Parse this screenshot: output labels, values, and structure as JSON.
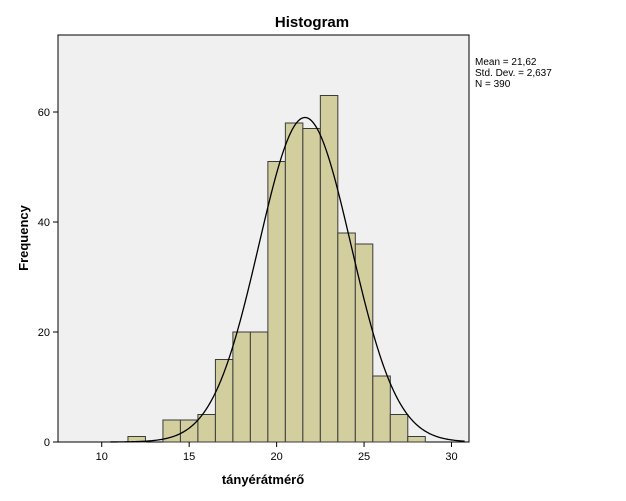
{
  "chart_data": {
    "type": "bar",
    "title": "Histogram",
    "xlabel": "tányérátmérő",
    "ylabel": "Frequency",
    "xlim": [
      7.5,
      31
    ],
    "ylim": [
      0,
      74
    ],
    "x_ticks": [
      10,
      15,
      20,
      25,
      30
    ],
    "y_ticks": [
      0,
      20,
      40,
      60
    ],
    "bin_width": 1,
    "bins": [
      {
        "start": 11.5,
        "end": 12.5,
        "count": 1
      },
      {
        "start": 13.5,
        "end": 14.5,
        "count": 4
      },
      {
        "start": 14.5,
        "end": 15.5,
        "count": 4
      },
      {
        "start": 15.5,
        "end": 16.5,
        "count": 5
      },
      {
        "start": 16.5,
        "end": 17.5,
        "count": 15
      },
      {
        "start": 17.5,
        "end": 18.5,
        "count": 20
      },
      {
        "start": 18.5,
        "end": 19.5,
        "count": 20
      },
      {
        "start": 19.5,
        "end": 20.5,
        "count": 51
      },
      {
        "start": 20.5,
        "end": 21.5,
        "count": 58
      },
      {
        "start": 21.5,
        "end": 22.5,
        "count": 57
      },
      {
        "start": 22.5,
        "end": 23.5,
        "count": 63
      },
      {
        "start": 23.5,
        "end": 24.5,
        "count": 38
      },
      {
        "start": 24.5,
        "end": 25.5,
        "count": 36
      },
      {
        "start": 25.5,
        "end": 26.5,
        "count": 12
      },
      {
        "start": 26.5,
        "end": 27.5,
        "count": 5
      },
      {
        "start": 27.5,
        "end": 28.5,
        "count": 1
      }
    ],
    "normal_curve": {
      "mean": 21.62,
      "sd": 2.637,
      "n": 390
    },
    "stats_text": [
      "Mean = 21,62",
      "Std. Dev. = 2,637",
      "N = 390"
    ],
    "grid": false,
    "colors": {
      "bar_fill": "#d3ce9e",
      "bar_stroke": "#3a3a3a",
      "plot_bg": "#f0f0f0",
      "curve": "#000000"
    }
  }
}
